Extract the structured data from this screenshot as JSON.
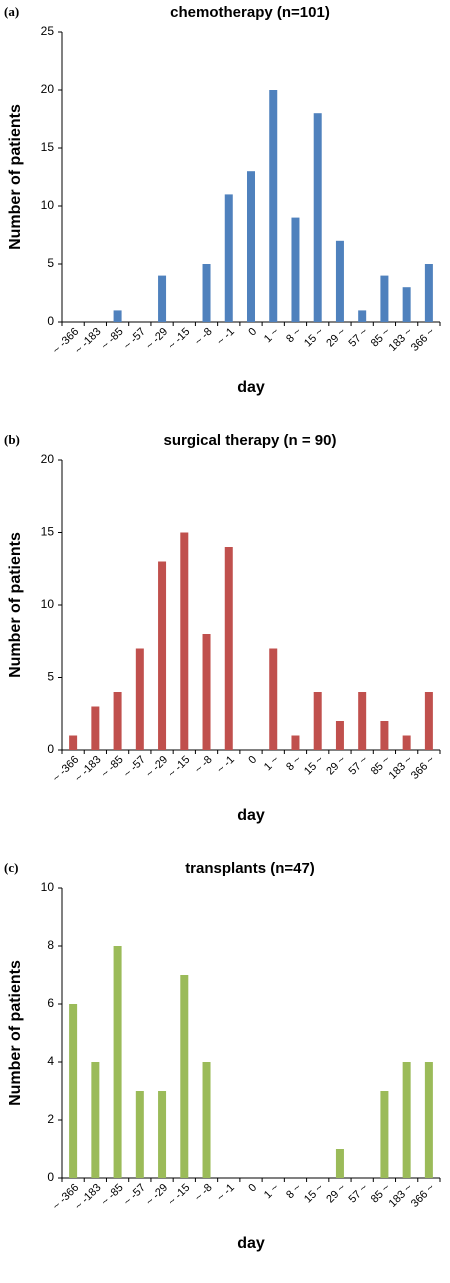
{
  "chart_data": [
    {
      "type": "bar",
      "panel_letter": "(a)",
      "title": "chemotherapy (n=101)",
      "xlabel": "day",
      "ylabel": "Number of patients",
      "ylim": [
        0,
        25
      ],
      "yticks": [
        0,
        5,
        10,
        15,
        20,
        25
      ],
      "color": "#4f81bd",
      "categories": [
        "~ -366",
        "~ -183",
        "~ -85",
        "~ -57",
        "~ -29",
        "~ -15",
        "~ -8",
        "~ -1",
        "0",
        "1 ~",
        "8 ~",
        "15 ~",
        "29 ~",
        "57 ~",
        "85 ~",
        "183 ~",
        "366 ~"
      ],
      "values": [
        0,
        0,
        1,
        0,
        4,
        0,
        5,
        11,
        13,
        20,
        9,
        18,
        7,
        1,
        4,
        3,
        5
      ]
    },
    {
      "type": "bar",
      "panel_letter": "(b)",
      "title": "surgical therapy (n = 90)",
      "xlabel": "day",
      "ylabel": "Number of patients",
      "ylim": [
        0,
        20
      ],
      "yticks": [
        0,
        5,
        10,
        15,
        20
      ],
      "color": "#c0504d",
      "categories": [
        "~ -366",
        "~ -183",
        "~ -85",
        "~ -57",
        "~ -29",
        "~ -15",
        "~ -8",
        "~ -1",
        "0",
        "1 ~",
        "8 ~",
        "15 ~",
        "29 ~",
        "57 ~",
        "85 ~",
        "183 ~",
        "366 ~"
      ],
      "values": [
        1,
        3,
        4,
        7,
        13,
        15,
        8,
        14,
        0,
        7,
        1,
        4,
        2,
        4,
        2,
        1,
        4
      ]
    },
    {
      "type": "bar",
      "panel_letter": "(c)",
      "title": "transplants (n=47)",
      "xlabel": "day",
      "ylabel": "Number of patients",
      "ylim": [
        0,
        10
      ],
      "yticks": [
        0,
        2,
        4,
        6,
        8,
        10
      ],
      "color": "#9bbb59",
      "categories": [
        "~ -366",
        "~ -183",
        "~ -85",
        "~ -57",
        "~ -29",
        "~ -15",
        "~ -8",
        "~ -1",
        "0",
        "1 ~",
        "8 ~",
        "15 ~",
        "29 ~",
        "57 ~",
        "85 ~",
        "183 ~",
        "366 ~"
      ],
      "values": [
        6,
        4,
        8,
        3,
        3,
        7,
        4,
        0,
        0,
        0,
        0,
        0,
        1,
        0,
        3,
        4,
        4
      ]
    }
  ]
}
